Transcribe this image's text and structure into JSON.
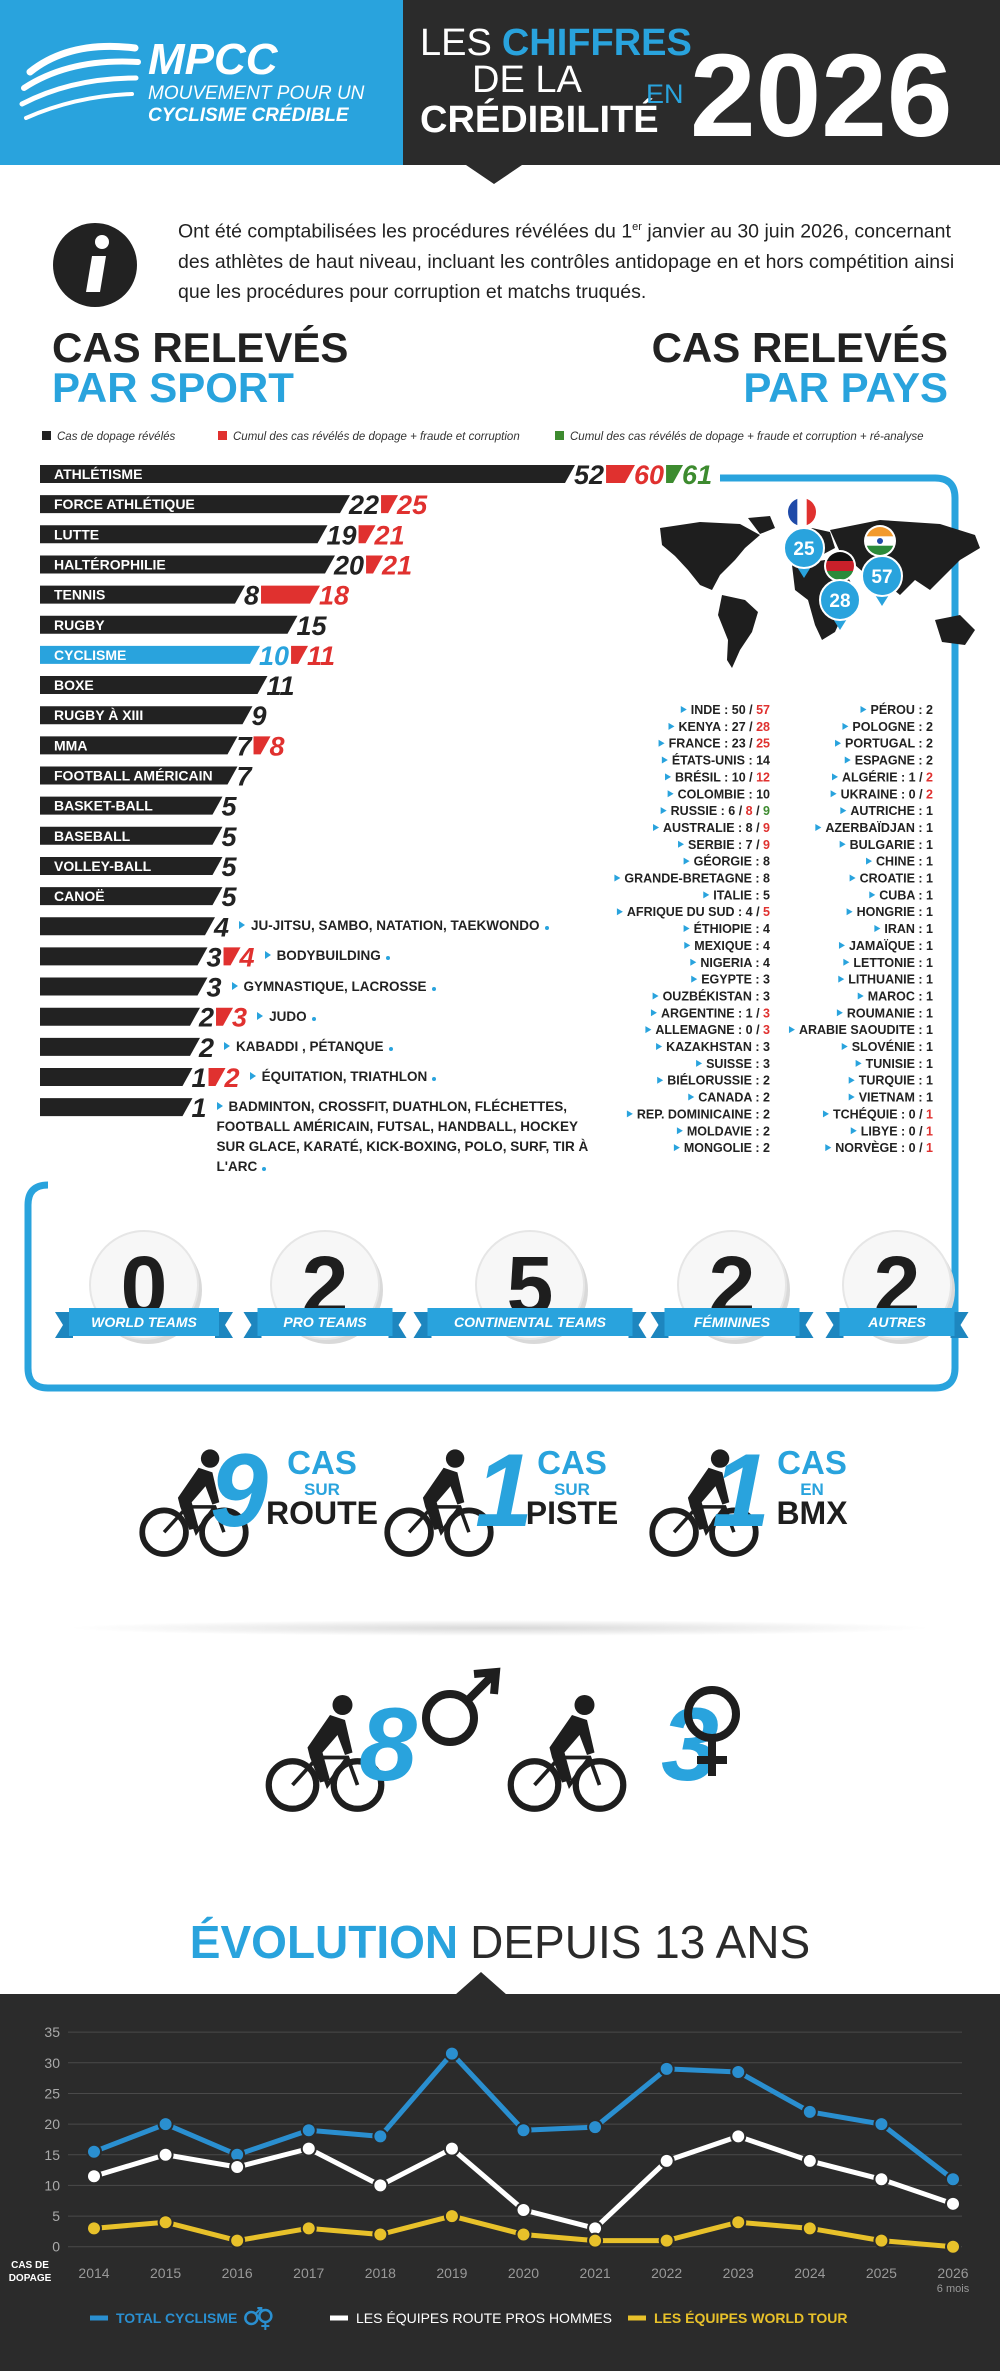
{
  "header": {
    "logo": "MPCC",
    "logo_line1": "MOUVEMENT POUR UN",
    "logo_line2": "CYCLISME CRÉDIBLE",
    "title_les": "LES",
    "title_chiffres": "CHIFFRES",
    "title_de_la": "DE LA",
    "title_credibilite": "CRÉDIBILITÉ",
    "title_en": "EN",
    "title_year": "2026"
  },
  "intro": {
    "text_before": "Ont été comptabilisées les procédures révélées du 1",
    "superscript": "er",
    "text_after": " janvier au 30 juin 2026, concernant des athlètes de haut niveau, incluant les contrôles antidopage en et hors compétition ainsi que les procédures pour corruption et matchs truqués."
  },
  "sport_heading": [
    "CAS RELEVÉS",
    "PAR SPORT"
  ],
  "country_heading": [
    "CAS RELEVÉS",
    "PAR PAYS"
  ],
  "legend": [
    {
      "label": "Cas de dopage révélés",
      "color": "#222222"
    },
    {
      "label": "Cumul des cas révélés de dopage + fraude et corruption",
      "color": "#e0312f"
    },
    {
      "label": "Cumul des cas révélés de dopage + fraude et corruption + ré-analyse",
      "color": "#3d8b2f"
    }
  ],
  "sports": [
    {
      "name": "ATHLÉTISME",
      "values": [
        52,
        60,
        61
      ]
    },
    {
      "name": "FORCE ATHLÉTIQUE",
      "values": [
        22,
        25
      ]
    },
    {
      "name": "LUTTE",
      "values": [
        19,
        21
      ]
    },
    {
      "name": "HALTÉROPHILIE",
      "values": [
        20,
        21
      ]
    },
    {
      "name": "TENNIS",
      "values": [
        8,
        18
      ]
    },
    {
      "name": "RUGBY",
      "values": [
        15
      ]
    },
    {
      "name": "CYCLISME",
      "values": [
        10,
        11
      ],
      "color": "#29a3dd"
    },
    {
      "name": "BOXE",
      "values": [
        11
      ]
    },
    {
      "name": "RUGBY À XIII",
      "values": [
        9
      ]
    },
    {
      "name": "MMA",
      "values": [
        7,
        8
      ]
    },
    {
      "name": "FOOTBALL AMÉRICAIN",
      "values": [
        7
      ]
    },
    {
      "name": "BASKET-BALL",
      "values": [
        5
      ]
    },
    {
      "name": "BASEBALL",
      "values": [
        5
      ]
    },
    {
      "name": "VOLLEY-BALL",
      "values": [
        5
      ]
    },
    {
      "name": "CANOË",
      "values": [
        5
      ]
    }
  ],
  "sport_groups": [
    {
      "name": "JU-JITSU, SAMBO, NATATION, TAEKWONDO",
      "values": [
        4
      ]
    },
    {
      "name": "BODYBUILDING",
      "values": [
        3,
        4
      ]
    },
    {
      "name": "GYMNASTIQUE, LACROSSE",
      "values": [
        3
      ]
    },
    {
      "name": "JUDO",
      "values": [
        2,
        3
      ]
    },
    {
      "name": "KABADDI , PÉTANQUE",
      "values": [
        2
      ]
    },
    {
      "name": "ÉQUITATION, TRIATHLON",
      "values": [
        1,
        2
      ]
    },
    {
      "name": "BADMINTON, CROSSFIT, DUATHLON, FLÉCHETTES, FOOTBALL AMÉRICAIN, FUTSAL, HANDBALL, HOCKEY SUR GLACE, KARATÉ, KICK-BOXING, POLO, SURF, TIR À L'ARC",
      "values": [
        1
      ]
    }
  ],
  "map_pins": [
    25,
    28,
    57
  ],
  "countries": {
    "name_separator": " : ",
    "value_separator": " / ",
    "left": [
      {
        "name": "INDE",
        "values": [
          50,
          57
        ]
      },
      {
        "name": "KENYA",
        "values": [
          27,
          28
        ]
      },
      {
        "name": "FRANCE",
        "values": [
          23,
          25
        ]
      },
      {
        "name": "ÉTATS-UNIS",
        "values": [
          14
        ]
      },
      {
        "name": "BRÉSIL",
        "values": [
          10,
          12
        ]
      },
      {
        "name": "COLOMBIE",
        "values": [
          10
        ]
      },
      {
        "name": "RUSSIE",
        "values": [
          6,
          8,
          9
        ]
      },
      {
        "name": "AUSTRALIE",
        "values": [
          8,
          9
        ]
      },
      {
        "name": "SERBIE",
        "values": [
          7,
          9
        ]
      },
      {
        "name": "GÉORGIE",
        "values": [
          8
        ]
      },
      {
        "name": "GRANDE-BRETAGNE",
        "values": [
          8
        ]
      },
      {
        "name": "ITALIE",
        "values": [
          5
        ]
      },
      {
        "name": "AFRIQUE DU SUD",
        "values": [
          4,
          5
        ]
      },
      {
        "name": "ÉTHIOPIE",
        "values": [
          4
        ]
      },
      {
        "name": "MEXIQUE",
        "values": [
          4
        ]
      },
      {
        "name": "NIGERIA",
        "values": [
          4
        ]
      },
      {
        "name": "EGYPTE",
        "values": [
          3
        ]
      },
      {
        "name": "OUZBÉKISTAN",
        "values": [
          3
        ]
      },
      {
        "name": "ARGENTINE",
        "values": [
          1,
          3
        ]
      },
      {
        "name": "ALLEMAGNE",
        "values": [
          0,
          3
        ]
      },
      {
        "name": "KAZAKHSTAN",
        "values": [
          3
        ]
      },
      {
        "name": "SUISSE",
        "values": [
          3
        ]
      },
      {
        "name": "BIÉLORUSSIE",
        "values": [
          2
        ]
      },
      {
        "name": "CANADA",
        "values": [
          2
        ]
      },
      {
        "name": "REP. DOMINICAINE",
        "values": [
          2
        ]
      },
      {
        "name": "MOLDAVIE",
        "values": [
          2
        ]
      },
      {
        "name": "MONGOLIE",
        "values": [
          2
        ]
      }
    ],
    "right": [
      {
        "name": "PÉROU",
        "values": [
          2
        ]
      },
      {
        "name": "POLOGNE",
        "values": [
          2
        ]
      },
      {
        "name": "PORTUGAL",
        "values": [
          2
        ]
      },
      {
        "name": "ESPAGNE",
        "values": [
          2
        ]
      },
      {
        "name": "ALGÉRIE",
        "values": [
          1,
          2
        ]
      },
      {
        "name": "UKRAINE",
        "values": [
          0,
          2
        ]
      },
      {
        "name": "AUTRICHE",
        "values": [
          1
        ]
      },
      {
        "name": "AZERBAÏDJAN",
        "values": [
          1
        ]
      },
      {
        "name": "BULGARIE",
        "values": [
          1
        ]
      },
      {
        "name": "CHINE",
        "values": [
          1
        ]
      },
      {
        "name": "CROATIE",
        "values": [
          1
        ]
      },
      {
        "name": "CUBA",
        "values": [
          1
        ]
      },
      {
        "name": "HONGRIE",
        "values": [
          1
        ]
      },
      {
        "name": "IRAN",
        "values": [
          1
        ]
      },
      {
        "name": "JAMAÏQUE",
        "values": [
          1
        ]
      },
      {
        "name": "LETTONIE",
        "values": [
          1
        ]
      },
      {
        "name": "LITHUANIE",
        "values": [
          1
        ]
      },
      {
        "name": "MAROC",
        "values": [
          1
        ]
      },
      {
        "name": "ROUMANIE",
        "values": [
          1
        ]
      },
      {
        "name": "ARABIE SAOUDITE",
        "values": [
          1
        ]
      },
      {
        "name": "SLOVÉNIE",
        "values": [
          1
        ]
      },
      {
        "name": "TUNISIE",
        "values": [
          1
        ]
      },
      {
        "name": "TURQUIE",
        "values": [
          1
        ]
      },
      {
        "name": "VIETNAM",
        "values": [
          1
        ]
      },
      {
        "name": "TCHÉQUIE",
        "values": [
          0,
          1
        ]
      },
      {
        "name": "LIBYE",
        "values": [
          0,
          1
        ]
      },
      {
        "name": "NORVÈGE",
        "values": [
          0,
          1
        ]
      }
    ]
  },
  "teams": [
    {
      "value": 0,
      "label": "WORLD TEAMS"
    },
    {
      "value": 2,
      "label": "PRO TEAMS"
    },
    {
      "value": 5,
      "label": "CONTINENTAL TEAMS"
    },
    {
      "value": 2,
      "label": "FÉMININES"
    },
    {
      "value": 2,
      "label": "AUTRES"
    }
  ],
  "disciplines": [
    {
      "value": 9,
      "cas": "CAS",
      "prep": "SUR",
      "label": "ROUTE"
    },
    {
      "value": 1,
      "cas": "CAS",
      "prep": "SUR",
      "label": "PISTE"
    },
    {
      "value": 1,
      "cas": "CAS",
      "prep": "EN",
      "label": "BMX"
    }
  ],
  "gender": [
    8,
    3
  ],
  "chart_data": {
    "type": "line",
    "title_highlight": "ÉVOLUTION",
    "title": "DEPUIS 13 ANS",
    "x": [
      2014,
      2015,
      2016,
      2017,
      2018,
      2019,
      2020,
      2021,
      2022,
      2023,
      2024,
      2025,
      2026
    ],
    "xlim": [
      2014,
      2026
    ],
    "xticks": [
      2014,
      2015,
      2016,
      2017,
      2018,
      2019,
      2020,
      2021,
      2022,
      2023,
      2024,
      2025,
      2026
    ],
    "x_note": "6 mois",
    "ylabel": [
      "CAS DE",
      "DOPAGE"
    ],
    "ylim": [
      -2,
      36
    ],
    "yticks": [
      0,
      5,
      10,
      15,
      20,
      25,
      30,
      35
    ],
    "grid": true,
    "series": [
      {
        "name": "TOTAL CYCLISME",
        "color": "#2a8fd0",
        "values": [
          15.5,
          20,
          15,
          19,
          18,
          31.5,
          19,
          19.5,
          29,
          28.5,
          22,
          20,
          11
        ]
      },
      {
        "name": "LES ÉQUIPES ROUTE PROS HOMMES",
        "color": "#ffffff",
        "values": [
          11.5,
          15,
          13,
          16,
          10,
          16,
          6,
          3,
          14,
          18,
          14,
          11,
          7
        ]
      },
      {
        "name": "LES ÉQUIPES WORLD TOUR",
        "color": "#e8c12a",
        "values": [
          3,
          4,
          1,
          3,
          2,
          5,
          2,
          1,
          1,
          4,
          3,
          1,
          0
        ]
      }
    ]
  }
}
